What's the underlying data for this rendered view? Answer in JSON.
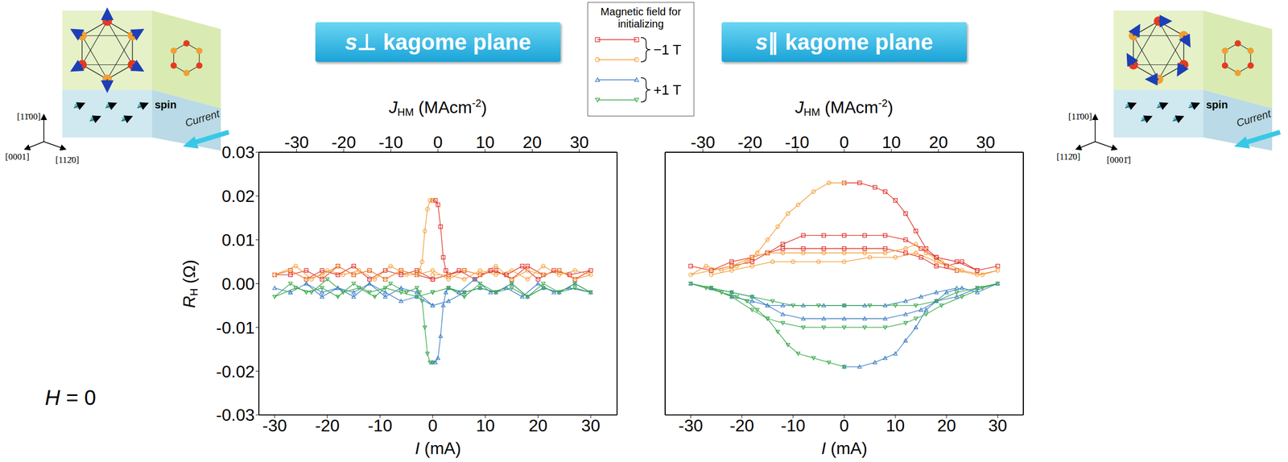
{
  "chart_data": [
    {
      "type": "line",
      "title": "s ⊥ kagome plane",
      "x_label": {
        "base": "I",
        "text": " (mA)"
      },
      "x2_label": {
        "base": "J",
        "sub": "HM",
        "text": " (MAcm",
        "sup": "-2",
        "end": ")"
      },
      "y_label": {
        "base": "R",
        "sub": "H",
        "text": " (Ω)"
      },
      "xlim": [
        -33,
        35
      ],
      "xticks": [
        -30,
        -20,
        -10,
        0,
        10,
        20,
        30
      ],
      "x2lim": [
        -38,
        38
      ],
      "x2ticks": [
        -30,
        -20,
        -10,
        0,
        10,
        20,
        30
      ],
      "ylim": [
        -0.03,
        0.03
      ],
      "yticks": [
        -0.03,
        -0.02,
        -0.01,
        {
          "value": 0,
          "label": "0.00"
        },
        0.01,
        0.02,
        0.03
      ],
      "grid": false,
      "legend": "top",
      "series": [
        {
          "name": "−1 T",
          "color": "#e0302a",
          "marker": "square",
          "x": [
            0,
            0.5,
            1,
            1.5,
            2,
            2.5,
            3,
            5,
            8,
            11,
            14,
            17,
            20,
            23,
            26,
            30,
            27,
            24,
            21,
            18,
            15,
            12,
            9,
            6,
            3,
            0,
            -3,
            -6,
            -9,
            -12,
            -15,
            -18,
            -21,
            -24,
            -27,
            -30,
            -27,
            -24,
            -21,
            -18,
            -15,
            -12,
            -9,
            -6,
            -3,
            0
          ],
          "values": [
            0.019,
            0.019,
            0.018,
            0.013,
            0.006,
            0.003,
            0.002,
            0.003,
            0.001,
            0.003,
            0.002,
            0.004,
            0.001,
            0.003,
            0.002,
            0.003,
            0.001,
            0.003,
            0.002,
            0.004,
            0.001,
            0.003,
            0.002,
            0.003,
            0.002,
            0.001,
            0.002,
            0.003,
            0.001,
            0.003,
            0.002,
            0.004,
            0.001,
            0.003,
            0.002,
            0.002,
            0.003,
            0.001,
            0.003,
            0.002,
            0.004,
            0.001,
            0.003,
            0.002,
            0.003,
            0.001
          ]
        },
        {
          "name": "−1 T",
          "color": "#f39c34",
          "marker": "circle",
          "x": [
            0,
            -0.5,
            -1,
            -1.5,
            -2,
            -2.5,
            -3,
            -5,
            -8,
            -11,
            -14,
            -17,
            -20,
            -23,
            -26,
            -30,
            -27,
            -24,
            -21,
            -18,
            -15,
            -12,
            -9,
            -6,
            -3,
            0,
            3,
            6,
            9,
            12,
            15,
            18,
            21,
            24,
            27,
            30,
            27,
            24,
            21,
            18,
            15,
            12,
            9,
            6,
            3,
            0
          ],
          "values": [
            0.019,
            0.019,
            0.017,
            0.012,
            0.005,
            0.003,
            0.002,
            0.002,
            0.004,
            0.001,
            0.003,
            0.002,
            0.003,
            0.001,
            0.004,
            0.002,
            0.003,
            0.001,
            0.002,
            0.004,
            0.002,
            0.003,
            0.001,
            0.003,
            0.002,
            0.003,
            0.001,
            0.003,
            0.002,
            0.004,
            0.001,
            0.003,
            0.002,
            0.003,
            0.001,
            0.002,
            0.003,
            0.002,
            0.004,
            0.001,
            0.003,
            0.002,
            0.003,
            0.001,
            0.002,
            0.002
          ]
        },
        {
          "name": "+1 T",
          "color": "#3b7fc4",
          "marker": "triangle",
          "x": [
            0,
            0.5,
            1,
            1.5,
            2,
            2.5,
            3,
            5,
            8,
            11,
            14,
            17,
            20,
            23,
            26,
            30,
            27,
            24,
            21,
            18,
            15,
            12,
            9,
            6,
            3,
            0,
            -3,
            -6,
            -9,
            -12,
            -15,
            -18,
            -21,
            -24,
            -27,
            -30,
            -27,
            -24,
            -21,
            -18,
            -15,
            -12,
            -9,
            -6,
            -3,
            0
          ],
          "values": [
            -0.018,
            -0.018,
            -0.017,
            -0.012,
            -0.005,
            -0.002,
            -0.001,
            -0.002,
            0.001,
            -0.002,
            -0.001,
            -0.003,
            0,
            -0.002,
            -0.001,
            -0.002,
            0,
            -0.002,
            -0.001,
            -0.003,
            0,
            -0.002,
            -0.001,
            -0.002,
            -0.004,
            -0.005,
            -0.002,
            -0.001,
            -0.003,
            0,
            -0.002,
            -0.001,
            -0.003,
            0,
            -0.002,
            -0.001,
            -0.002,
            0,
            -0.002,
            -0.001,
            -0.003,
            0,
            -0.002,
            -0.004,
            -0.003,
            -0.005
          ]
        },
        {
          "name": "+1 T",
          "color": "#3aa84a",
          "marker": "triangle-down",
          "x": [
            0,
            -0.5,
            -1,
            -1.5,
            -2,
            -2.5,
            -3,
            -5,
            -8,
            -11,
            -14,
            -17,
            -20,
            -23,
            -26,
            -30,
            -27,
            -24,
            -21,
            -18,
            -15,
            -12,
            -9,
            -6,
            -3,
            0,
            3,
            6,
            9,
            12,
            15,
            18,
            21,
            24,
            27,
            30,
            27,
            24,
            21,
            18,
            15,
            12,
            9,
            6,
            3,
            0
          ],
          "values": [
            -0.018,
            -0.018,
            -0.016,
            -0.01,
            -0.004,
            -0.002,
            -0.001,
            -0.002,
            0,
            -0.003,
            -0.001,
            -0.002,
            0.001,
            -0.002,
            -0.001,
            -0.003,
            0,
            -0.002,
            -0.001,
            -0.003,
            0,
            -0.002,
            -0.001,
            -0.002,
            -0.003,
            -0.002,
            -0.001,
            -0.003,
            0,
            -0.002,
            -0.001,
            -0.003,
            0,
            -0.002,
            -0.001,
            -0.002,
            0,
            -0.002,
            -0.001,
            -0.003,
            0,
            -0.002,
            -0.001,
            -0.002,
            -0.001,
            -0.002
          ]
        }
      ]
    },
    {
      "type": "line",
      "title": "s ∥ kagome plane",
      "x_label": {
        "base": "I",
        "text": " (mA)"
      },
      "x2_label": {
        "base": "J",
        "sub": "HM",
        "text": " (MAcm",
        "sup": "-2",
        "end": ")"
      },
      "xlim": [
        -35,
        35
      ],
      "xticks": [
        -30,
        -20,
        -10,
        0,
        10,
        20,
        30
      ],
      "x2lim": [
        -38,
        38
      ],
      "x2ticks": [
        -30,
        -20,
        -10,
        0,
        10,
        20,
        30
      ],
      "ylim": [
        -0.03,
        0.03
      ],
      "yticks": [
        -0.03,
        -0.02,
        -0.01,
        0,
        0.01,
        0.02,
        0.03
      ],
      "grid": false,
      "tick_labels": "x",
      "series": [
        {
          "name": "−1 T",
          "color": "#e0302a",
          "marker": "square",
          "x": [
            0,
            3,
            6,
            8,
            10,
            12,
            14,
            16,
            18,
            20,
            23,
            26,
            30,
            26,
            22,
            18,
            15,
            12,
            8,
            4,
            0,
            -4,
            -8,
            -12,
            -15,
            -18,
            -22,
            -26,
            -30,
            -26,
            -22,
            -18,
            -15,
            -12,
            -8,
            -4,
            0,
            4,
            8,
            12,
            15,
            18,
            22
          ],
          "values": [
            0.023,
            0.023,
            0.022,
            0.021,
            0.019,
            0.016,
            0.012,
            0.008,
            0.006,
            0.004,
            0.005,
            0.003,
            0.004,
            0.003,
            0.005,
            0.006,
            0.008,
            0.01,
            0.011,
            0.011,
            0.011,
            0.011,
            0.011,
            0.009,
            0.007,
            0.005,
            0.004,
            0.003,
            0.004,
            0.003,
            0.005,
            0.006,
            0.007,
            0.008,
            0.008,
            0.008,
            0.008,
            0.008,
            0.008,
            0.007,
            0.006,
            0.004,
            0.003
          ]
        },
        {
          "name": "−1 T",
          "color": "#f39c34",
          "marker": "circle",
          "x": [
            0,
            -3,
            -6,
            -9,
            -11,
            -13,
            -15,
            -17,
            -19,
            -21,
            -24,
            -27,
            -30,
            -26,
            -22,
            -18,
            -15,
            -12,
            -8,
            -4,
            0,
            4,
            8,
            12,
            14,
            16,
            19,
            23,
            27,
            30,
            26,
            22,
            18,
            14,
            10,
            5,
            0,
            -5,
            -10,
            -14,
            -18,
            -22,
            -26
          ],
          "values": [
            0.023,
            0.023,
            0.021,
            0.018,
            0.016,
            0.013,
            0.01,
            0.007,
            0.005,
            0.004,
            0.003,
            0.004,
            0.002,
            0.003,
            0.004,
            0.006,
            0.007,
            0.007,
            0.007,
            0.007,
            0.007,
            0.007,
            0.007,
            0.008,
            0.009,
            0.007,
            0.005,
            0.003,
            0.002,
            0.003,
            0.002,
            0.003,
            0.005,
            0.007,
            0.006,
            0.006,
            0.005,
            0.005,
            0.005,
            0.005,
            0.004,
            0.003,
            0.002
          ]
        },
        {
          "name": "+1 T",
          "color": "#3b7fc4",
          "marker": "triangle",
          "x": [
            0,
            3,
            6,
            8,
            10,
            12,
            14,
            16,
            18,
            20,
            23,
            26,
            30,
            26,
            22,
            18,
            15,
            12,
            8,
            4,
            0,
            -4,
            -8,
            -12,
            -15,
            -18,
            -22,
            -26,
            -30,
            -26,
            -22,
            -18,
            -15,
            -12,
            -8,
            -4,
            0,
            4,
            8,
            12,
            15,
            18,
            22
          ],
          "values": [
            -0.019,
            -0.019,
            -0.018,
            -0.017,
            -0.016,
            -0.013,
            -0.01,
            -0.006,
            -0.004,
            -0.002,
            -0.001,
            -0.002,
            0,
            -0.001,
            -0.003,
            -0.004,
            -0.006,
            -0.007,
            -0.008,
            -0.008,
            -0.008,
            -0.008,
            -0.008,
            -0.007,
            -0.005,
            -0.003,
            -0.002,
            -0.001,
            0,
            -0.001,
            -0.003,
            -0.004,
            -0.005,
            -0.005,
            -0.005,
            -0.005,
            -0.005,
            -0.005,
            -0.005,
            -0.004,
            -0.003,
            -0.002,
            -0.001
          ]
        },
        {
          "name": "+1 T",
          "color": "#3aa84a",
          "marker": "triangle-down",
          "x": [
            0,
            -3,
            -6,
            -9,
            -11,
            -13,
            -15,
            -17,
            -19,
            -21,
            -24,
            -27,
            -30,
            -26,
            -22,
            -18,
            -15,
            -12,
            -8,
            -4,
            0,
            4,
            8,
            12,
            14,
            16,
            19,
            23,
            27,
            30,
            26,
            22,
            18,
            14,
            10,
            5,
            0,
            -5,
            -10,
            -14,
            -18,
            -22,
            -26
          ],
          "values": [
            -0.019,
            -0.018,
            -0.017,
            -0.016,
            -0.014,
            -0.011,
            -0.008,
            -0.006,
            -0.004,
            -0.003,
            -0.002,
            -0.001,
            0,
            -0.001,
            -0.003,
            -0.006,
            -0.008,
            -0.009,
            -0.01,
            -0.01,
            -0.01,
            -0.01,
            -0.01,
            -0.009,
            -0.008,
            -0.007,
            -0.005,
            -0.003,
            -0.001,
            0,
            -0.001,
            -0.002,
            -0.004,
            -0.005,
            -0.005,
            -0.005,
            -0.005,
            -0.005,
            -0.005,
            -0.004,
            -0.003,
            -0.002,
            -0.001
          ]
        }
      ]
    }
  ],
  "legend_title": "Magnetic field for initializing",
  "field_label": "H = 0",
  "diagrams": [
    {
      "axes": [
        "[11̄00]",
        "[0001]",
        "[112̄0]"
      ],
      "spin": "spin",
      "current": "Current"
    },
    {
      "axes": [
        "[11̄00]",
        "[112̄0]",
        "[0001̄]"
      ],
      "spin": "spin",
      "current": "Current"
    }
  ]
}
